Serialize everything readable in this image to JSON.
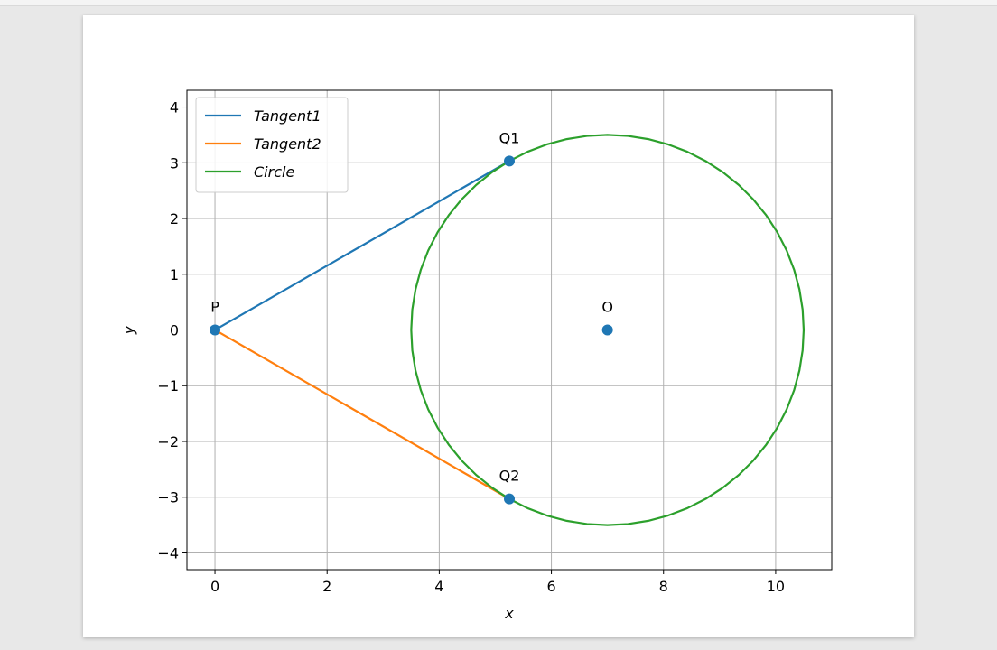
{
  "chart_data": {
    "type": "line",
    "xlabel": "x",
    "ylabel": "y",
    "xlim": [
      -0.5,
      11.0
    ],
    "ylim": [
      -4.3,
      4.3
    ],
    "xticks": [
      0,
      2,
      4,
      6,
      8,
      10
    ],
    "yticks": [
      -4,
      -3,
      -2,
      -1,
      0,
      1,
      2,
      3,
      4
    ],
    "xtick_labels": [
      "0",
      "2",
      "4",
      "6",
      "8",
      "10"
    ],
    "ytick_labels": [
      "−4",
      "−3",
      "−2",
      "−1",
      "0",
      "1",
      "2",
      "3",
      "4"
    ],
    "grid": true,
    "legend_position": "top-left",
    "series": [
      {
        "name": "Tangent1",
        "color": "#1f77b4",
        "kind": "segment",
        "x": [
          0,
          5.25
        ],
        "y": [
          0,
          3.03
        ]
      },
      {
        "name": "Tangent2",
        "color": "#ff7f0e",
        "kind": "segment",
        "x": [
          0,
          5.25
        ],
        "y": [
          0,
          -3.03
        ]
      },
      {
        "name": "Circle",
        "color": "#2ca02c",
        "kind": "circle",
        "center": [
          7,
          0
        ],
        "radius": 3.5
      }
    ],
    "points": [
      {
        "label": "P",
        "x": 0,
        "y": 0
      },
      {
        "label": "Q1",
        "x": 5.25,
        "y": 3.03
      },
      {
        "label": "Q2",
        "x": 5.25,
        "y": -3.03
      },
      {
        "label": "O",
        "x": 7,
        "y": 0
      }
    ],
    "point_color": "#1f77b4",
    "legend": [
      {
        "label": "Tangent1",
        "color": "#1f77b4"
      },
      {
        "label": "Tangent2",
        "color": "#ff7f0e"
      },
      {
        "label": "Circle",
        "color": "#2ca02c"
      }
    ]
  }
}
